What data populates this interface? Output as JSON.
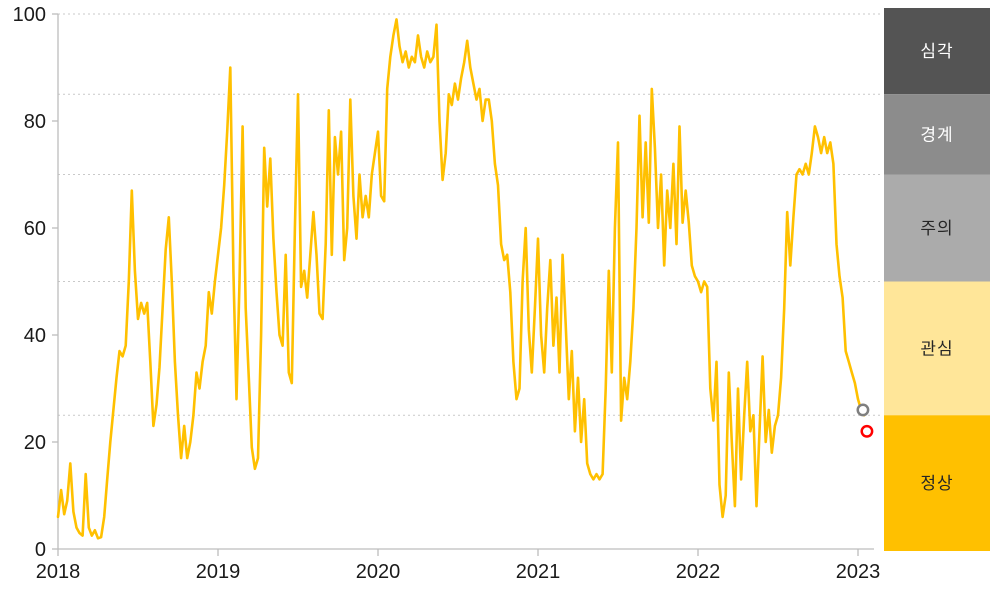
{
  "chart_data": {
    "type": "line",
    "title": "",
    "x_unit": "weeks since start of 2018",
    "x_tick_labels": [
      "2018",
      "2019",
      "2020",
      "2021",
      "2022",
      "2023"
    ],
    "y_ticks": [
      0,
      20,
      40,
      60,
      80,
      100
    ],
    "ylim": [
      0,
      100
    ],
    "grid": "dotted horizontal lines at band boundaries",
    "gridlines_at": [
      25,
      50,
      70,
      85,
      100
    ],
    "legend_position": "right vertical band strip",
    "series": [
      {
        "name": "risk-index",
        "color": "#FFC000",
        "values": [
          6,
          11,
          6.5,
          9,
          16,
          7,
          4,
          3,
          2.5,
          14,
          4,
          2.5,
          3.5,
          2,
          2.2,
          6,
          13,
          20,
          26,
          32,
          37,
          36,
          38,
          50,
          67,
          52,
          43,
          46,
          44,
          46,
          35,
          23,
          27,
          34,
          45,
          56,
          62,
          50,
          35,
          25,
          17,
          23,
          17,
          20,
          25,
          33,
          30,
          35,
          38,
          48,
          44,
          50,
          55,
          60,
          68,
          78,
          90,
          52,
          28,
          50,
          79,
          45,
          32,
          19,
          15,
          17,
          40,
          75,
          64,
          73,
          58,
          48,
          40,
          38,
          55,
          33,
          31,
          60,
          85,
          49,
          52,
          47,
          55,
          63,
          55,
          44,
          43,
          57,
          82,
          55,
          77,
          70,
          78,
          54,
          60,
          84,
          66,
          58,
          70,
          62,
          66,
          62,
          70,
          74,
          78,
          66,
          65,
          86,
          92,
          96,
          99,
          94,
          91,
          93,
          90,
          92,
          91,
          96,
          92,
          90,
          93,
          91,
          92,
          98,
          80,
          69,
          74,
          85,
          83,
          87,
          84,
          88,
          91,
          95,
          90,
          87,
          84,
          86,
          80,
          84,
          84,
          80,
          72,
          68,
          57,
          54,
          55,
          48,
          35,
          28,
          30,
          50,
          60,
          41,
          33,
          45,
          58,
          40,
          33,
          45,
          54,
          38,
          47,
          33,
          55,
          42,
          28,
          37,
          22,
          32,
          20,
          28,
          16,
          14,
          13,
          14,
          13,
          14,
          30,
          52,
          33,
          60,
          76,
          24,
          32,
          28,
          35,
          45,
          60,
          81,
          62,
          76,
          61,
          86,
          75,
          60,
          70,
          53,
          67,
          60,
          72,
          57,
          79,
          61,
          67,
          61,
          53,
          51,
          50,
          48,
          50,
          49,
          30,
          24,
          35,
          12,
          6,
          10,
          33,
          20,
          8,
          30,
          13,
          25,
          35,
          22,
          25,
          8,
          22,
          36,
          20,
          26,
          18,
          23,
          25,
          32,
          45,
          63,
          53,
          62,
          70,
          71,
          70,
          72,
          70,
          74,
          79,
          77,
          74,
          77,
          74,
          76,
          72,
          57,
          51,
          47,
          37,
          35,
          33,
          31,
          28,
          26,
          25
        ]
      }
    ],
    "end_markers": [
      {
        "name": "previous-value-marker",
        "color": "#7F7F7F",
        "week": 261.6,
        "value": 26
      },
      {
        "name": "latest-value-marker",
        "color": "#FF0000",
        "week": 262.9,
        "value": 22
      }
    ],
    "legend_bands": [
      {
        "label": "심각",
        "name_en": "severe",
        "range": [
          85,
          100
        ],
        "color": "#545454",
        "text_color": "#FFFFFF"
      },
      {
        "label": "경계",
        "name_en": "alert",
        "range": [
          70,
          85
        ],
        "color": "#8C8C8C",
        "text_color": "#FFFFFF"
      },
      {
        "label": "주의",
        "name_en": "caution",
        "range": [
          50,
          70
        ],
        "color": "#ABABAB",
        "text_color": "#262626"
      },
      {
        "label": "관심",
        "name_en": "attention",
        "range": [
          25,
          50
        ],
        "color": "#FFE699",
        "text_color": "#262626"
      },
      {
        "label": "정상",
        "name_en": "normal",
        "range": [
          0,
          25
        ],
        "color": "#FFC000",
        "text_color": "#262626"
      }
    ]
  }
}
